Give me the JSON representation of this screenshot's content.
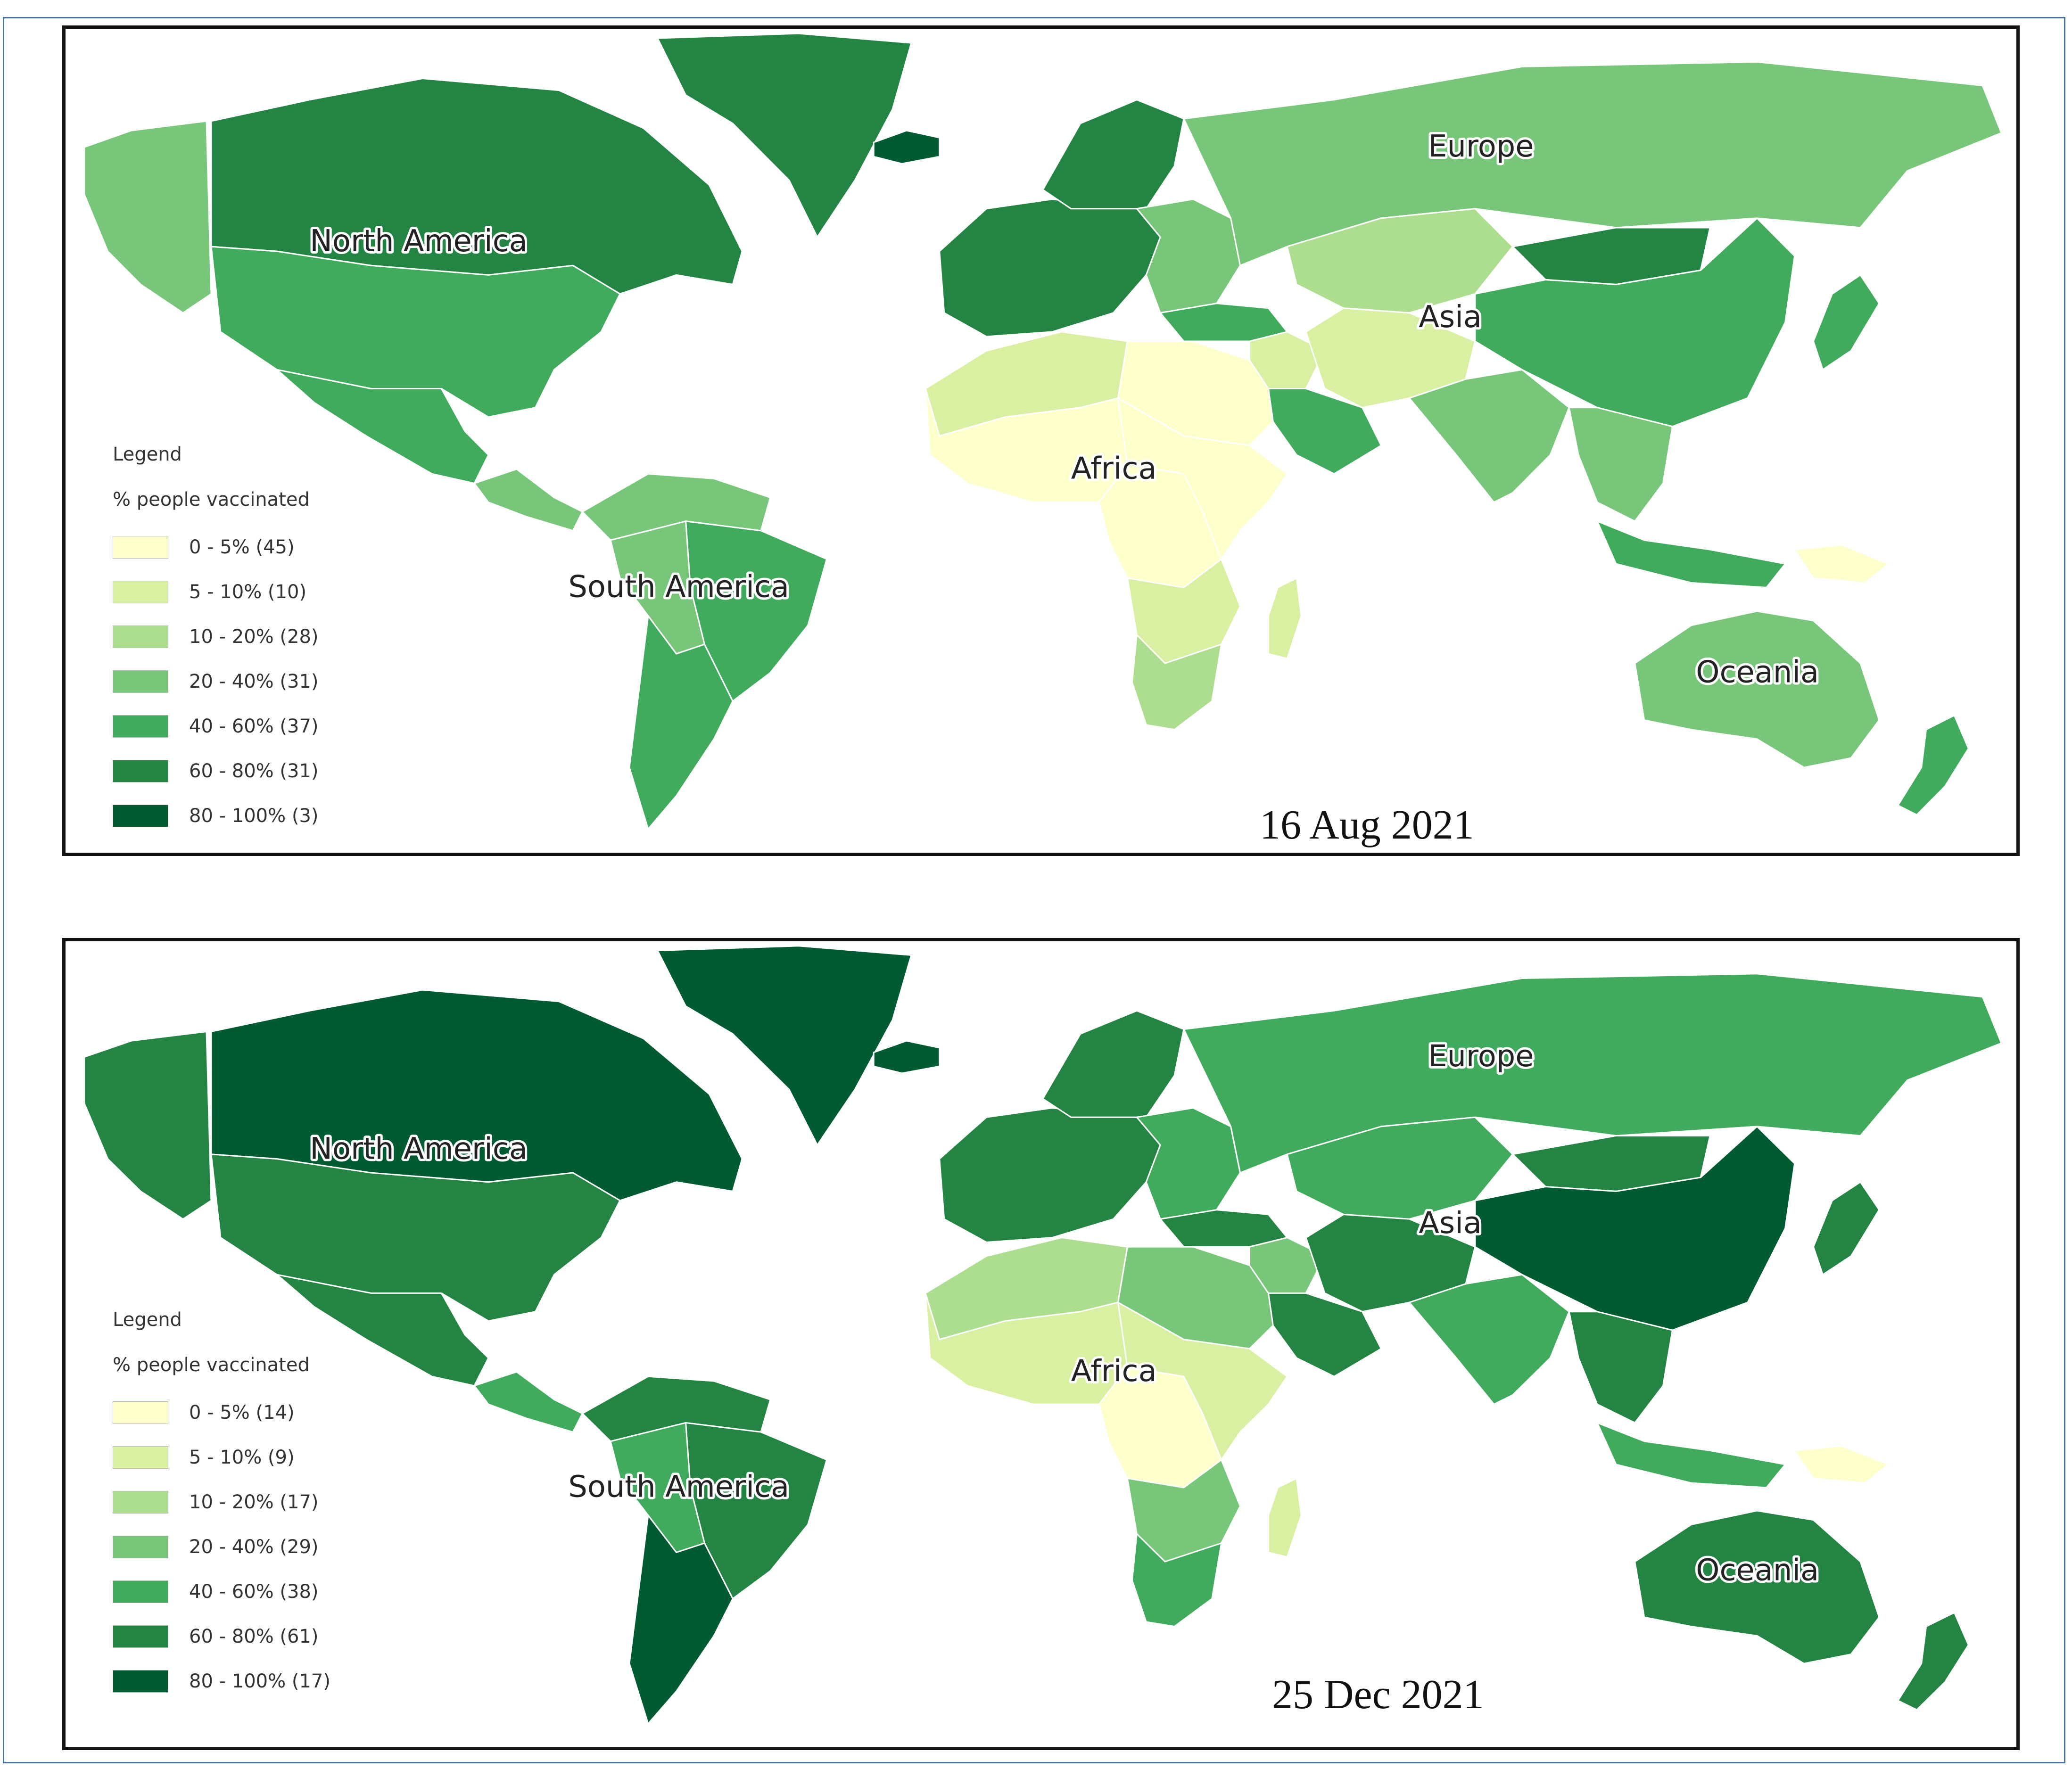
{
  "colors": {
    "bin0": "#ffffcc",
    "bin1": "#d9f0a3",
    "bin2": "#addd8e",
    "bin3": "#78c679",
    "bin4": "#41ab5d",
    "bin5": "#238443",
    "bin6": "#005a32",
    "frame": "#4a6fa5"
  },
  "panels": [
    {
      "date": "16 Aug 2021",
      "continent_labels": [
        "North America",
        "South America",
        "Africa",
        "Europe",
        "Asia",
        "Oceania"
      ],
      "legend": {
        "title": "Legend",
        "subtitle": "% people vaccinated",
        "items": [
          {
            "label": "0 - 5% (45)",
            "color_key": "bin0"
          },
          {
            "label": "5 - 10% (10)",
            "color_key": "bin1"
          },
          {
            "label": "10 - 20% (28)",
            "color_key": "bin2"
          },
          {
            "label": "20 - 40% (31)",
            "color_key": "bin3"
          },
          {
            "label": "40 - 60% (37)",
            "color_key": "bin4"
          },
          {
            "label": "60 - 80% (31)",
            "color_key": "bin5"
          },
          {
            "label": "80 - 100% (3)",
            "color_key": "bin6"
          }
        ]
      },
      "regions": {
        "alaska": "bin3",
        "canada": "bin5",
        "greenland": "bin5",
        "iceland": "bin6",
        "usa": "bin4",
        "mexico": "bin4",
        "central_america": "bin3",
        "northern_south_america": "bin3",
        "brazil": "bin4",
        "andes": "bin3",
        "southern_cone": "bin4",
        "western_europe": "bin5",
        "eastern_europe": "bin3",
        "scandinavia": "bin5",
        "russia": "bin3",
        "turkey": "bin4",
        "central_asia": "bin2",
        "middle_east": "bin1",
        "arabia": "bin4",
        "iran_afghanistan": "bin1",
        "india": "bin3",
        "mongolia": "bin5",
        "china": "bin4",
        "japan": "bin4",
        "southeast_asia": "bin3",
        "indonesia": "bin4",
        "papua": "bin0",
        "australia": "bin3",
        "new_zealand": "bin4",
        "north_africa": "bin1",
        "egypt_libya": "bin0",
        "west_africa": "bin0",
        "central_africa": "bin0",
        "east_africa": "bin0",
        "southern_africa": "bin1",
        "south_africa": "bin2",
        "madagascar": "bin1"
      }
    },
    {
      "date": "25 Dec 2021",
      "continent_labels": [
        "North America",
        "South America",
        "Africa",
        "Europe",
        "Asia",
        "Oceania"
      ],
      "legend": {
        "title": "Legend",
        "subtitle": "% people vaccinated",
        "items": [
          {
            "label": "0 - 5% (14)",
            "color_key": "bin0"
          },
          {
            "label": "5 - 10% (9)",
            "color_key": "bin1"
          },
          {
            "label": "10 - 20% (17)",
            "color_key": "bin2"
          },
          {
            "label": "20 - 40% (29)",
            "color_key": "bin3"
          },
          {
            "label": "40 - 60% (38)",
            "color_key": "bin4"
          },
          {
            "label": "60 - 80% (61)",
            "color_key": "bin5"
          },
          {
            "label": "80 - 100% (17)",
            "color_key": "bin6"
          }
        ]
      },
      "regions": {
        "alaska": "bin5",
        "canada": "bin6",
        "greenland": "bin6",
        "iceland": "bin6",
        "usa": "bin5",
        "mexico": "bin5",
        "central_america": "bin4",
        "northern_south_america": "bin5",
        "brazil": "bin5",
        "andes": "bin4",
        "southern_cone": "bin6",
        "western_europe": "bin5",
        "eastern_europe": "bin4",
        "scandinavia": "bin5",
        "russia": "bin4",
        "turkey": "bin5",
        "central_asia": "bin4",
        "middle_east": "bin3",
        "arabia": "bin5",
        "iran_afghanistan": "bin5",
        "india": "bin4",
        "mongolia": "bin5",
        "china": "bin6",
        "japan": "bin5",
        "southeast_asia": "bin5",
        "indonesia": "bin4",
        "papua": "bin0",
        "australia": "bin5",
        "new_zealand": "bin5",
        "north_africa": "bin2",
        "egypt_libya": "bin3",
        "west_africa": "bin1",
        "central_africa": "bin0",
        "east_africa": "bin1",
        "southern_africa": "bin3",
        "south_africa": "bin4",
        "madagascar": "bin1"
      }
    }
  ]
}
